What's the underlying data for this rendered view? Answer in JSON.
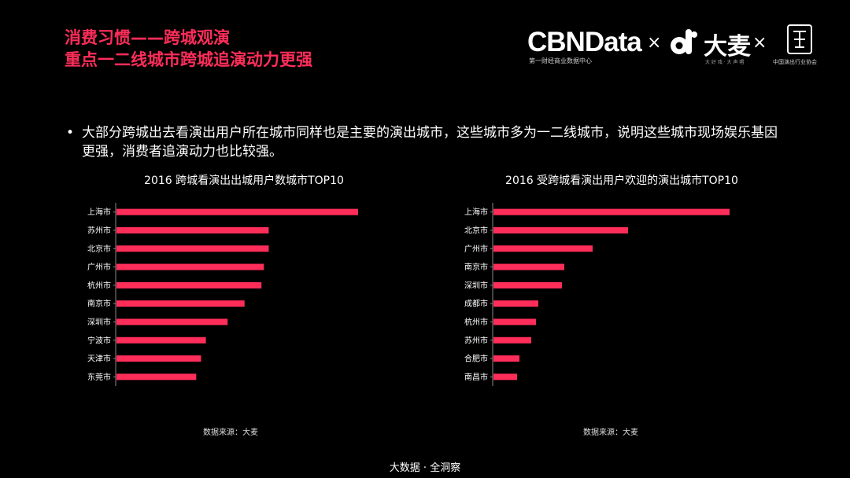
{
  "header": {
    "title_line1": "消费习惯——跨城观演",
    "title_line2": "重点一二线城市跨城追演动力更强"
  },
  "logos": {
    "cbndata": "CBNData",
    "cbndata_sub": "第一财经商业数据中心",
    "times1": "×",
    "damai": "大麦",
    "damai_sub": "大 好 戏 · 大 声 唱",
    "times2": "×",
    "assoc": "中国演出行业协会",
    "accent_color": "#ff2d5a"
  },
  "bullet": {
    "symbol": "•",
    "text": "大部分跨城出去看演出用户所在城市同样也是主要的演出城市，这些城市多为一二线城市，说明这些城市现场娱乐基因更强，消费者追演动力也比较强。"
  },
  "chart_data": [
    {
      "type": "bar",
      "orientation": "horizontal",
      "title": "2016 跨城看演出出城用户数城市TOP10",
      "categories": [
        "上海市",
        "苏州市",
        "北京市",
        "广州市",
        "杭州市",
        "南京市",
        "深圳市",
        "宁波市",
        "天津市",
        "东莞市"
      ],
      "values": [
        100,
        63,
        63,
        61,
        60,
        53,
        46,
        37,
        35,
        33
      ],
      "xlim": [
        0,
        100
      ],
      "grid": false,
      "source": "数据来源：大麦",
      "bar_color": "#ff2d5a"
    },
    {
      "type": "bar",
      "orientation": "horizontal",
      "title": "2016 受跨城看演出用户欢迎的演出城市TOP10",
      "categories": [
        "上海市",
        "北京市",
        "广州市",
        "南京市",
        "深圳市",
        "成都市",
        "杭州市",
        "苏州市",
        "合肥市",
        "南昌市"
      ],
      "values": [
        100,
        57,
        42,
        30,
        29,
        19,
        18,
        16,
        11,
        10
      ],
      "xlim": [
        0,
        100
      ],
      "grid": false,
      "source": "数据来源：大麦",
      "bar_color": "#ff2d5a"
    }
  ],
  "footer": {
    "text": "大数据 · 全洞察"
  }
}
